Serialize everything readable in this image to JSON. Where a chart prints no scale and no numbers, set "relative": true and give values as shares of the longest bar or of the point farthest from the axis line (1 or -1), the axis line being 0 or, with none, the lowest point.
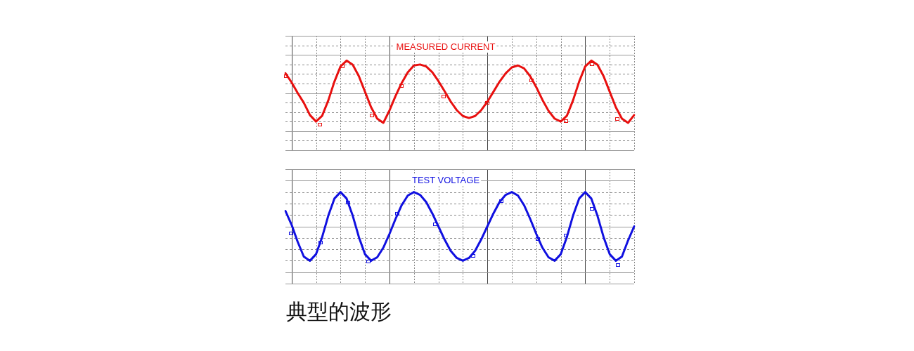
{
  "chart_data": [
    {
      "type": "line",
      "title": "MEASURED CURRENT",
      "relative": true,
      "grid": true,
      "categories": [
        null,
        null,
        null,
        null,
        null,
        null,
        null,
        null,
        null,
        null,
        null,
        null,
        null,
        null,
        null,
        null,
        null,
        null,
        null,
        null,
        null,
        null,
        null,
        null,
        null,
        null,
        null,
        null,
        null,
        null,
        null,
        null,
        null,
        null,
        null,
        null,
        null,
        null,
        null,
        null,
        null,
        null,
        null,
        null,
        null,
        null,
        null,
        null,
        null,
        null,
        null,
        null,
        null,
        null,
        null,
        null,
        null,
        null
      ],
      "series": [
        {
          "color": "#e8100f",
          "values": [
            0.61,
            0.33,
            0,
            -0.3,
            -0.68,
            -0.88,
            -0.7,
            -0.23,
            0.35,
            0.82,
            1,
            0.87,
            0.52,
            0.04,
            -0.44,
            -0.79,
            -0.92,
            -0.54,
            -0.09,
            0.31,
            0.64,
            0.85,
            0.88,
            0.82,
            0.64,
            0.37,
            0.06,
            -0.26,
            -0.53,
            -0.71,
            -0.77,
            -0.71,
            -0.53,
            -0.27,
            0.04,
            0.35,
            0.61,
            0.79,
            0.85,
            0.76,
            0.52,
            0.18,
            -0.21,
            -0.55,
            -0.79,
            -0.88,
            -0.7,
            -0.23,
            0.35,
            0.82,
            1,
            0.87,
            0.52,
            0.04,
            -0.44,
            -0.79,
            -0.92,
            -0.68
          ]
        }
      ]
    },
    {
      "type": "line",
      "title": "TEST VOLTAGE",
      "relative": true,
      "grid": true,
      "annotations": [
        "典型的波形"
      ],
      "categories": [
        null,
        null,
        null,
        null,
        null,
        null,
        null,
        null,
        null,
        null,
        null,
        null,
        null,
        null,
        null,
        null,
        null,
        null,
        null,
        null,
        null,
        null,
        null,
        null,
        null,
        null,
        null,
        null,
        null,
        null,
        null,
        null,
        null,
        null,
        null,
        null,
        null,
        null,
        null,
        null,
        null,
        null,
        null,
        null,
        null,
        null,
        null,
        null,
        null,
        null,
        null,
        null,
        null,
        null,
        null,
        null,
        null,
        null
      ],
      "series": [
        {
          "color": "#1010e0",
          "values": [
            0.45,
            0.05,
            -0.45,
            -0.88,
            -1,
            -0.81,
            -0.31,
            0.31,
            0.81,
            1,
            0.81,
            0.31,
            -0.31,
            -0.81,
            -1,
            -0.9,
            -0.62,
            -0.22,
            0.22,
            0.62,
            0.9,
            1,
            0.92,
            0.71,
            0.38,
            0,
            -0.38,
            -0.71,
            -0.92,
            -1,
            -0.92,
            -0.71,
            -0.38,
            0,
            0.38,
            0.71,
            0.92,
            1,
            0.9,
            0.62,
            0.22,
            -0.22,
            -0.62,
            -0.9,
            -1,
            -0.81,
            -0.31,
            0.31,
            0.81,
            1,
            0.81,
            0.31,
            -0.31,
            -0.81,
            -1,
            -0.88,
            -0.41,
            0
          ]
        }
      ]
    }
  ]
}
